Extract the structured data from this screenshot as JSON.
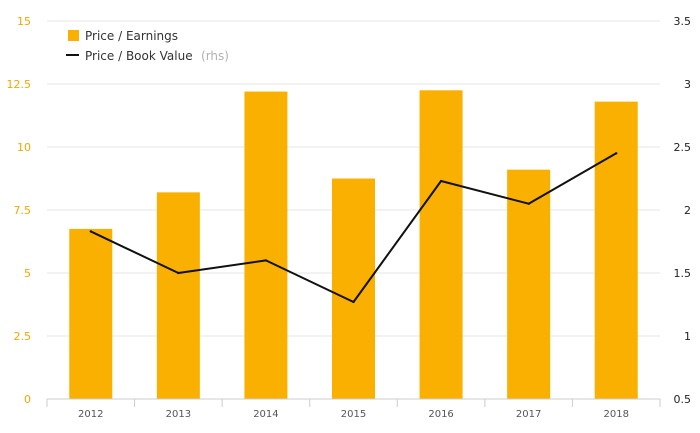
{
  "chart_data": {
    "type": "bar",
    "categories": [
      "2012",
      "2013",
      "2014",
      "2015",
      "2016",
      "2017",
      "2018"
    ],
    "series": [
      {
        "name": "Price / Earnings",
        "type": "bar",
        "axis": "left",
        "color": "#f9b000",
        "values": [
          6.75,
          8.2,
          12.2,
          8.75,
          12.25,
          9.1,
          11.8
        ]
      },
      {
        "name": "Price / Book Value",
        "name_note": "(rhs)",
        "type": "line",
        "axis": "right",
        "color": "#111111",
        "values": [
          1.83,
          1.5,
          1.6,
          1.27,
          2.23,
          2.05,
          2.45
        ]
      }
    ],
    "left_axis": {
      "ylim": [
        0,
        15
      ],
      "ticks": [
        "0",
        "2.5",
        "5",
        "7.5",
        "10",
        "12.5",
        "15"
      ]
    },
    "right_axis": {
      "ylim": [
        0.5,
        3.5
      ],
      "ticks": [
        "0.5",
        "1",
        "1.5",
        "2",
        "2.5",
        "3",
        "3.5"
      ]
    },
    "grid": true,
    "legend_position": "top-left"
  }
}
